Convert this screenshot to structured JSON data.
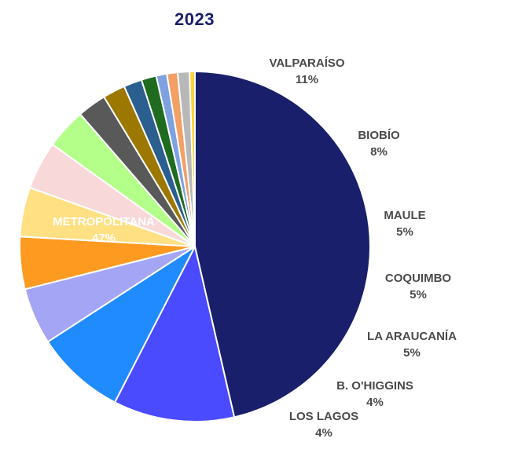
{
  "chart_data": {
    "type": "pie",
    "title": "2023",
    "slices": [
      {
        "label": "METROPOLITANA",
        "pct_label": "47%",
        "value": 47.0,
        "color": "#1a1f6b"
      },
      {
        "label": "VALPARAÍSO",
        "pct_label": "11%",
        "value": 11.3,
        "color": "#4a4aff"
      },
      {
        "label": "BIOBÍO",
        "pct_label": "8%",
        "value": 8.4,
        "color": "#1f8bff"
      },
      {
        "label": "MAULE",
        "pct_label": "5%",
        "value": 5.3,
        "color": "#a5a5f5"
      },
      {
        "label": "COQUIMBO",
        "pct_label": "5%",
        "value": 4.9,
        "color": "#ff9a20"
      },
      {
        "label": "LA ARAUCANÍA",
        "pct_label": "5%",
        "value": 4.6,
        "color": "#ffe083"
      },
      {
        "label": "B. O'HIGGINS",
        "pct_label": "4%",
        "value": 4.5,
        "color": "#f8d8d8"
      },
      {
        "label": "LOS LAGOS",
        "pct_label": "4%",
        "value": 3.8,
        "color": "#b3ff8a"
      },
      {
        "label": "",
        "pct_label": "",
        "value": 2.7,
        "color": "#595959"
      },
      {
        "label": "",
        "pct_label": "",
        "value": 2.1,
        "color": "#9c7800"
      },
      {
        "label": "",
        "pct_label": "",
        "value": 1.7,
        "color": "#2a5f8f"
      },
      {
        "label": "",
        "pct_label": "",
        "value": 1.4,
        "color": "#1f6b1f"
      },
      {
        "label": "",
        "pct_label": "",
        "value": 1.0,
        "color": "#7ea1e0"
      },
      {
        "label": "",
        "pct_label": "",
        "value": 1.0,
        "color": "#f2a066"
      },
      {
        "label": "",
        "pct_label": "",
        "value": 1.1,
        "color": "#b8b8b8"
      },
      {
        "label": "",
        "pct_label": "",
        "value": 0.5,
        "color": "#ffd23a"
      }
    ]
  }
}
